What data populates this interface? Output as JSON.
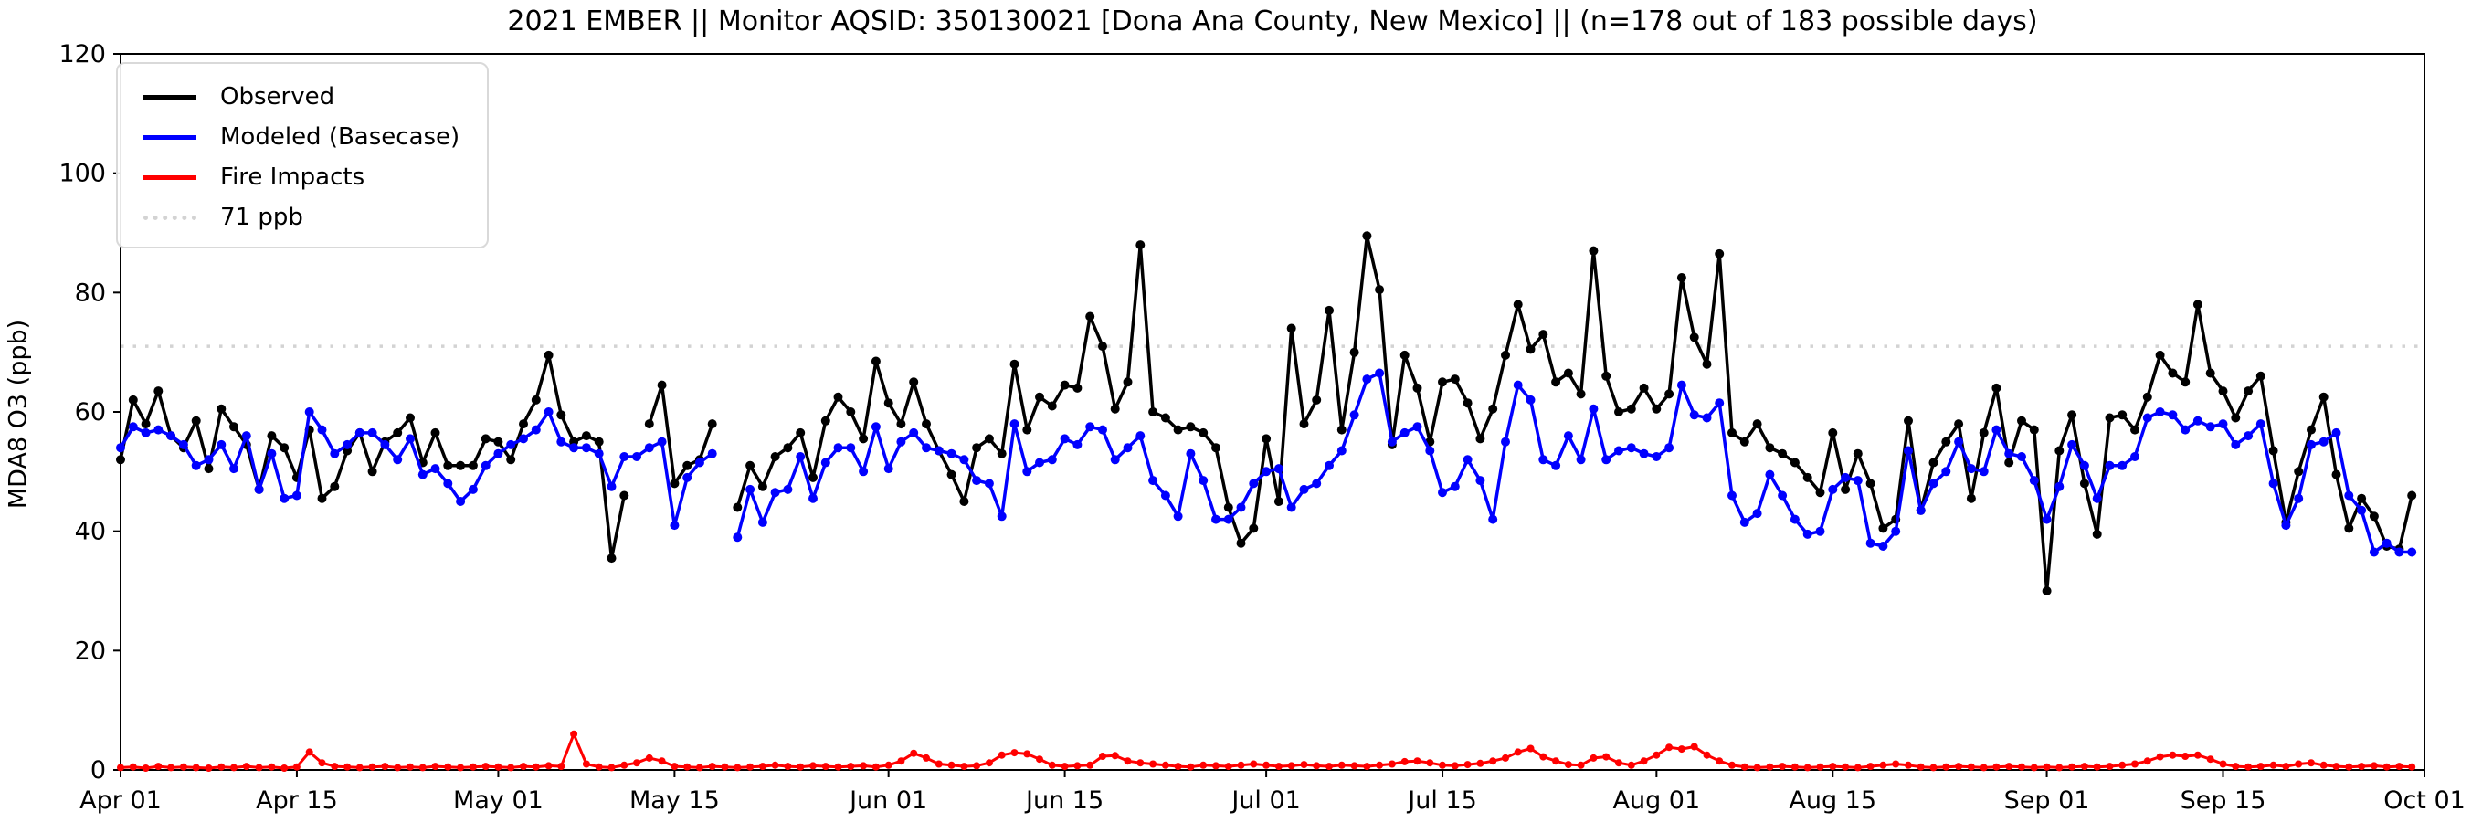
{
  "title": "2021 EMBER || Monitor AQSID: 350130021 [Dona Ana County, New Mexico] || (n=178 out of 183 possible days)",
  "axes": {
    "ylabel": "MDA8 O3 (ppb)",
    "ylim": [
      0,
      120
    ],
    "yticks": [
      0,
      20,
      40,
      60,
      80,
      100,
      120
    ],
    "xtick_labels": [
      "Apr 01",
      "Apr 15",
      "May 01",
      "May 15",
      "Jun 01",
      "Jun 15",
      "Jul 01",
      "Jul 15",
      "Aug 01",
      "Aug 15",
      "Sep 01",
      "Sep 15",
      "Oct 01"
    ],
    "xtick_days": [
      0,
      14,
      30,
      44,
      61,
      75,
      91,
      105,
      122,
      136,
      153,
      167,
      183
    ]
  },
  "legend": {
    "items": [
      {
        "label": "Observed",
        "color": "#000000",
        "style": "solid"
      },
      {
        "label": "Modeled (Basecase)",
        "color": "#0000ff",
        "style": "solid"
      },
      {
        "label": "Fire Impacts",
        "color": "#ff0000",
        "style": "solid"
      },
      {
        "label": "71 ppb",
        "color": "#d3d3d3",
        "style": "dotted"
      }
    ]
  },
  "chart_data": {
    "type": "line",
    "x_start": "Apr 01",
    "x_end": "Oct 01",
    "x_count": 183,
    "threshold": {
      "label": "71 ppb",
      "value": 71,
      "color": "#d3d3d3"
    },
    "grid": false,
    "legend_position": "upper-left",
    "series": [
      {
        "name": "Observed",
        "color": "#000000",
        "values": [
          52,
          62,
          58,
          63.5,
          56,
          54,
          58.5,
          50.5,
          60.5,
          57.5,
          54.5,
          47,
          56,
          54,
          49,
          57,
          45.5,
          47.5,
          53.5,
          56.5,
          50,
          55,
          56.5,
          59,
          51.5,
          56.5,
          51,
          51,
          51,
          55.5,
          55,
          52,
          58,
          62,
          69.5,
          59.5,
          55,
          56,
          55,
          35.5,
          46,
          null,
          58,
          64.5,
          48,
          51,
          52,
          58,
          null,
          44,
          51,
          47.5,
          52.5,
          54,
          56.5,
          49,
          58.5,
          62.5,
          60,
          55.5,
          68.5,
          61.5,
          58,
          65,
          58,
          53.5,
          49.5,
          45,
          54,
          55.5,
          53,
          68,
          57,
          62.5,
          61,
          64.5,
          64,
          76,
          71,
          60.5,
          65,
          88,
          60,
          59,
          57,
          57.5,
          56.5,
          54,
          44,
          38,
          40.5,
          55.5,
          45,
          74,
          58,
          62,
          77,
          57,
          70,
          89.5,
          80.5,
          54.5,
          69.5,
          64,
          55,
          65,
          65.5,
          61.5,
          55.5,
          60.5,
          69.5,
          78,
          70.5,
          73,
          65,
          66.5,
          63,
          87,
          66,
          60,
          60.5,
          64,
          60.5,
          63,
          82.5,
          72.5,
          68,
          86.5,
          56.5,
          55,
          58,
          54,
          53,
          51.5,
          49,
          46.5,
          56.5,
          47,
          53,
          48,
          40.5,
          42,
          58.5,
          43.5,
          51.5,
          55,
          58,
          45.5,
          56.5,
          64,
          51.5,
          58.5,
          57,
          30,
          53.5,
          59.5,
          48,
          39.5,
          59,
          59.5,
          57,
          62.5,
          69.5,
          66.5,
          65,
          78,
          66.5,
          63.5,
          59,
          63.5,
          66,
          53.5,
          41.5,
          50,
          57,
          62.5,
          49.5,
          40.5,
          45.5,
          42.5,
          37.5,
          37,
          46
        ]
      },
      {
        "name": "Modeled (Basecase)",
        "color": "#0000ff",
        "values": [
          54,
          57.5,
          56.5,
          57,
          56,
          54.5,
          51,
          52,
          54.5,
          50.5,
          56,
          47,
          53,
          45.5,
          46,
          60,
          57,
          53,
          54.5,
          56.5,
          56.5,
          54.5,
          52,
          55.5,
          49.5,
          50.5,
          48,
          45,
          47,
          51,
          53,
          54.5,
          55.5,
          57,
          60,
          55,
          54,
          54,
          53,
          47.5,
          52.5,
          52.5,
          54,
          55,
          41,
          49,
          51.5,
          53,
          null,
          39,
          47,
          41.5,
          46.5,
          47,
          52.5,
          45.5,
          51.5,
          54,
          54,
          50,
          57.5,
          50.5,
          55,
          56.5,
          54,
          53.5,
          53,
          52,
          48.5,
          48,
          42.5,
          58,
          50,
          51.5,
          52,
          55.5,
          54.5,
          57.5,
          57,
          52,
          54,
          56,
          48.5,
          46,
          42.5,
          53,
          48.5,
          42,
          42,
          44,
          48,
          50,
          50.5,
          44,
          47,
          48,
          51,
          53.5,
          59.5,
          65.5,
          66.5,
          55,
          56.5,
          57.5,
          53.5,
          46.5,
          47.5,
          52,
          48.5,
          42,
          55,
          64.5,
          62,
          52,
          51,
          56,
          52,
          60.5,
          52,
          53.5,
          54,
          53,
          52.5,
          54,
          64.5,
          59.5,
          59,
          61.5,
          46,
          41.5,
          43,
          49.5,
          46,
          42,
          39.5,
          40,
          47,
          49,
          48.5,
          38,
          37.5,
          40,
          53.5,
          43.5,
          48,
          50,
          55,
          50.5,
          50,
          57,
          53,
          52.5,
          48.5,
          42,
          47.5,
          54.5,
          51,
          45.5,
          51,
          51,
          52.5,
          59,
          60,
          59.5,
          57,
          58.5,
          57.5,
          58,
          54.5,
          56,
          58,
          48,
          41,
          45.5,
          54.5,
          55,
          56.5,
          46,
          43.5,
          36.5,
          38,
          36.5,
          36.5
        ]
      },
      {
        "name": "Fire Impacts",
        "color": "#ff0000",
        "values": [
          0.4,
          0.5,
          0.3,
          0.6,
          0.4,
          0.5,
          0.4,
          0.3,
          0.5,
          0.4,
          0.6,
          0.4,
          0.5,
          0.3,
          0.5,
          3,
          1.2,
          0.6,
          0.5,
          0.4,
          0.5,
          0.6,
          0.4,
          0.5,
          0.4,
          0.6,
          0.5,
          0.4,
          0.5,
          0.6,
          0.5,
          0.4,
          0.6,
          0.5,
          0.7,
          0.6,
          6,
          1,
          0.5,
          0.4,
          0.8,
          1.2,
          2,
          1.5,
          0.6,
          0.5,
          0.4,
          0.6,
          0.5,
          0.4,
          0.5,
          0.6,
          0.8,
          0.6,
          0.5,
          0.7,
          0.6,
          0.5,
          0.6,
          0.7,
          0.5,
          0.8,
          1.5,
          2.8,
          2,
          1,
          0.8,
          0.6,
          0.7,
          1.2,
          2.5,
          2.9,
          2.7,
          1.8,
          0.8,
          0.6,
          0.7,
          0.8,
          2.3,
          2.4,
          1.5,
          1.2,
          1,
          0.8,
          0.6,
          0.5,
          0.8,
          0.7,
          0.6,
          0.8,
          1,
          0.8,
          0.6,
          0.7,
          0.9,
          0.7,
          0.6,
          0.8,
          0.7,
          0.6,
          0.8,
          1,
          1.4,
          1.5,
          1.2,
          0.8,
          0.7,
          0.9,
          1.1,
          1.5,
          2,
          3,
          3.6,
          2.2,
          1.5,
          0.9,
          0.8,
          2,
          2.2,
          1.2,
          0.8,
          1.5,
          2.5,
          3.8,
          3.5,
          3.9,
          2.5,
          1.5,
          0.8,
          0.5,
          0.4,
          0.5,
          0.6,
          0.5,
          0.4,
          0.5,
          0.6,
          0.5,
          0.4,
          0.6,
          0.8,
          1,
          0.8,
          0.5,
          0.4,
          0.5,
          0.6,
          0.5,
          0.4,
          0.5,
          0.6,
          0.5,
          0.4,
          0.5,
          0.4,
          0.5,
          0.6,
          0.5,
          0.6,
          0.8,
          1,
          1.5,
          2.2,
          2.5,
          2.3,
          2.5,
          1.8,
          1,
          0.6,
          0.5,
          0.6,
          0.8,
          0.6,
          1,
          1.2,
          0.8,
          0.6,
          0.5,
          0.6,
          0.7,
          0.5,
          0.6,
          0.5
        ]
      }
    ]
  }
}
